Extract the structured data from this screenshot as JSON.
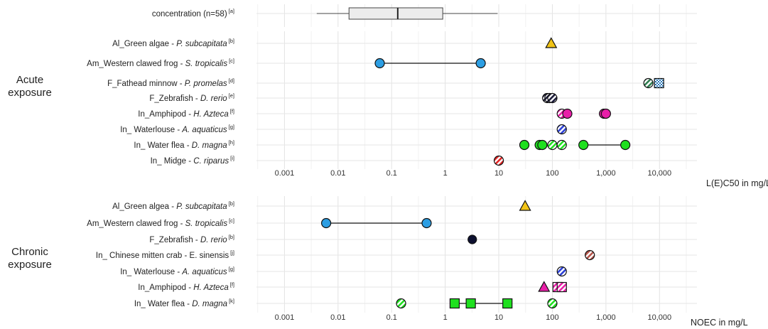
{
  "chart_data": [
    {
      "type": "boxplot",
      "label": "concentration (n=58)",
      "label_ref": "[a]",
      "box": {
        "min": 0.004,
        "q1": 0.016,
        "median": 0.13,
        "q3": 0.9,
        "max": 9.5
      }
    },
    {
      "type": "scatter",
      "panel_label": [
        "Acute",
        "exposure"
      ],
      "axis_title": "L(E)C50 in mg/L",
      "x_scale": "log",
      "xlim": [
        0.0003,
        50000
      ],
      "tick_labels": [
        "0.001",
        "0.01",
        "0.1",
        "1",
        "10",
        "100",
        "1,000",
        "10,000"
      ],
      "tick_values": [
        0.001,
        0.01,
        0.1,
        1,
        10,
        100,
        1000,
        10000
      ],
      "rows": [
        {
          "label_parts": [
            {
              "t": "Al_Green algae - "
            },
            {
              "t": "P. subcapitata",
              "i": true
            }
          ],
          "ref": "[b]",
          "color": "#f2c416",
          "points": [
            {
              "x": 95,
              "shape": "triangle"
            }
          ],
          "segments": []
        },
        {
          "label_parts": [
            {
              "t": "Am_Western clawed frog - "
            },
            {
              "t": "S. tropicalis",
              "i": true
            }
          ],
          "ref": "[c]",
          "color": "#2c9ee3",
          "points": [
            {
              "x": 0.06,
              "shape": "circle"
            },
            {
              "x": 4.6,
              "shape": "circle"
            }
          ],
          "segments": [
            [
              0.06,
              4.6
            ]
          ]
        },
        {
          "label_parts": [
            {
              "t": "F_Fathead minnow - "
            },
            {
              "t": "P. promelas",
              "i": true
            }
          ],
          "ref": "[d]",
          "color": "#2e7d4f",
          "points": [
            {
              "x": 6200,
              "shape": "circle-hatch"
            },
            {
              "x": 9800,
              "shape": "square-check",
              "color": "#2877b8"
            }
          ],
          "segments": []
        },
        {
          "label_parts": [
            {
              "t": "F_Zebrafish - "
            },
            {
              "t": "D. rerio",
              "i": true
            }
          ],
          "ref": "[e]",
          "color": "#1b1b3a",
          "points": [
            {
              "x": 80,
              "shape": "circle-hatch"
            },
            {
              "x": 88,
              "shape": "circle-hatch"
            },
            {
              "x": 100,
              "shape": "circle-hatch"
            }
          ],
          "segments": []
        },
        {
          "label_parts": [
            {
              "t": "In_Amphipod - "
            },
            {
              "t": "H. Azteca",
              "i": true
            }
          ],
          "ref": "[f]",
          "color": "#e81fa8",
          "points": [
            {
              "x": 150,
              "shape": "circle-hatch"
            },
            {
              "x": 190,
              "shape": "circle"
            },
            {
              "x": 920,
              "shape": "circle"
            },
            {
              "x": 1000,
              "shape": "circle"
            }
          ],
          "segments": []
        },
        {
          "label_parts": [
            {
              "t": "In_ Waterlouse - "
            },
            {
              "t": "A. aquaticus",
              "i": true
            }
          ],
          "ref": "[g]",
          "color": "#2b3fd6",
          "points": [
            {
              "x": 150,
              "shape": "circle-hatch"
            }
          ],
          "segments": []
        },
        {
          "label_parts": [
            {
              "t": "In_ Water flea - "
            },
            {
              "t": "D. magna",
              "i": true
            }
          ],
          "ref": "[h]",
          "color": "#1fe01f",
          "points": [
            {
              "x": 30,
              "shape": "circle"
            },
            {
              "x": 58,
              "shape": "circle"
            },
            {
              "x": 65,
              "shape": "circle"
            },
            {
              "x": 100,
              "shape": "circle-hatch"
            },
            {
              "x": 150,
              "shape": "circle-hatch"
            },
            {
              "x": 380,
              "shape": "circle"
            },
            {
              "x": 2300,
              "shape": "circle"
            }
          ],
          "segments": [
            [
              380,
              2300
            ]
          ]
        },
        {
          "label_parts": [
            {
              "t": "In_ Midge - "
            },
            {
              "t": "C. riparus",
              "i": true
            }
          ],
          "ref": "[i]",
          "color": "#e32626",
          "points": [
            {
              "x": 10,
              "shape": "circle-hatch"
            }
          ],
          "segments": []
        }
      ]
    },
    {
      "type": "scatter",
      "panel_label": [
        "Chronic",
        "exposure"
      ],
      "axis_title": "NOEC in mg/L",
      "x_scale": "log",
      "xlim": [
        0.0003,
        50000
      ],
      "tick_labels": [
        "0.001",
        "0.01",
        "0.1",
        "1",
        "10",
        "100",
        "1,000",
        "10,000"
      ],
      "tick_values": [
        0.001,
        0.01,
        0.1,
        1,
        10,
        100,
        1000,
        10000
      ],
      "rows": [
        {
          "label_parts": [
            {
              "t": "Al_Green algea - "
            },
            {
              "t": "P. subcapitata",
              "i": true
            }
          ],
          "ref": "[b]",
          "color": "#f2c416",
          "points": [
            {
              "x": 31,
              "shape": "triangle"
            }
          ],
          "segments": []
        },
        {
          "label_parts": [
            {
              "t": "Am_Western clawed frog - "
            },
            {
              "t": "S. tropicalis",
              "i": true
            }
          ],
          "ref": "[c]",
          "color": "#2c9ee3",
          "points": [
            {
              "x": 0.006,
              "shape": "circle"
            },
            {
              "x": 0.45,
              "shape": "circle"
            }
          ],
          "segments": [
            [
              0.006,
              0.45
            ]
          ]
        },
        {
          "label_parts": [
            {
              "t": "F_Zebrafish - "
            },
            {
              "t": "D. rerio",
              "i": true
            }
          ],
          "ref": "[b]",
          "color": "#0d1030",
          "points": [
            {
              "x": 3.2,
              "shape": "circle-small"
            }
          ],
          "segments": []
        },
        {
          "label_parts": [
            {
              "t": "In_ Chinese mitten crab - E. sinensis"
            }
          ],
          "ref": "[j]",
          "color": "#b5544a",
          "points": [
            {
              "x": 500,
              "shape": "circle-hatch"
            }
          ],
          "segments": []
        },
        {
          "label_parts": [
            {
              "t": "In_ Waterlouse - "
            },
            {
              "t": "A. aquaticus",
              "i": true
            }
          ],
          "ref": "[g]",
          "color": "#2b3fd6",
          "points": [
            {
              "x": 150,
              "shape": "circle-hatch"
            }
          ],
          "segments": []
        },
        {
          "label_parts": [
            {
              "t": "In_Amphipod - "
            },
            {
              "t": "H. Azteca",
              "i": true
            }
          ],
          "ref": "[f]",
          "color": "#e81fa8",
          "points": [
            {
              "x": 70,
              "shape": "triangle"
            },
            {
              "x": 125,
              "shape": "square-hatch"
            },
            {
              "x": 150,
              "shape": "square-hatch"
            }
          ],
          "segments": []
        },
        {
          "label_parts": [
            {
              "t": "In_ Water flea - "
            },
            {
              "t": "D. magna",
              "i": true
            }
          ],
          "ref": "[k]",
          "color": "#1fe01f",
          "points": [
            {
              "x": 0.15,
              "shape": "circle-hatch"
            },
            {
              "x": 1.5,
              "shape": "square"
            },
            {
              "x": 3,
              "shape": "square"
            },
            {
              "x": 14.5,
              "shape": "square"
            },
            {
              "x": 100,
              "shape": "circle-hatch"
            }
          ],
          "segments": [
            [
              1.5,
              14.5
            ]
          ]
        }
      ]
    }
  ]
}
